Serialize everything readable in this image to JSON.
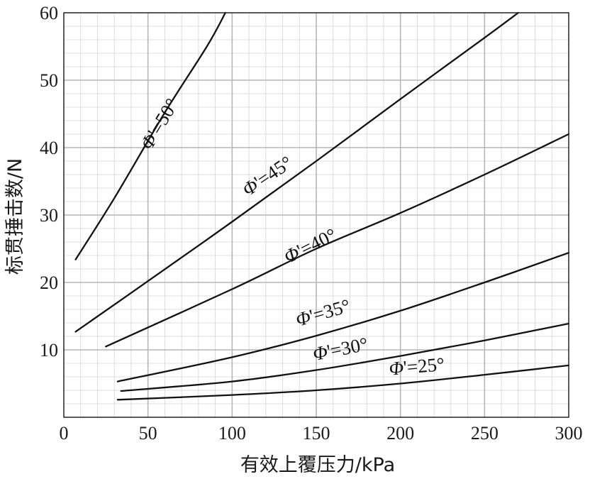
{
  "chart_data": {
    "type": "line",
    "title": "",
    "xlabel": "有效上覆压力/kPa",
    "ylabel": "标贯捶击数/N",
    "xlim": [
      0,
      300
    ],
    "ylim": [
      0,
      60
    ],
    "x_ticks": [
      "0",
      "50",
      "100",
      "150",
      "200",
      "250",
      "300"
    ],
    "y_ticks": [
      "10",
      "20",
      "30",
      "40",
      "50",
      "60"
    ],
    "grid": true,
    "minor_grid": true,
    "series": [
      {
        "name": "Φ'=50°",
        "points": [
          [
            7,
            23.4
          ],
          [
            30,
            32.5
          ],
          [
            60,
            45.2
          ],
          [
            85,
            55.0
          ],
          [
            96,
            60.0
          ]
        ]
      },
      {
        "name": "Φ'=45°",
        "points": [
          [
            7,
            12.7
          ],
          [
            50,
            20.2
          ],
          [
            100,
            29.0
          ],
          [
            150,
            38.0
          ],
          [
            200,
            47.2
          ],
          [
            250,
            56.3
          ],
          [
            270,
            60.0
          ]
        ]
      },
      {
        "name": "Φ'=40°",
        "points": [
          [
            25,
            10.5
          ],
          [
            100,
            19.0
          ],
          [
            150,
            25.0
          ],
          [
            200,
            30.3
          ],
          [
            250,
            36.0
          ],
          [
            300,
            42.0
          ]
        ]
      },
      {
        "name": "Φ'=35°",
        "points": [
          [
            32,
            5.3
          ],
          [
            100,
            8.9
          ],
          [
            150,
            12.1
          ],
          [
            200,
            15.8
          ],
          [
            250,
            20.0
          ],
          [
            300,
            24.4
          ]
        ]
      },
      {
        "name": "Φ'=30°",
        "points": [
          [
            34,
            3.9
          ],
          [
            100,
            5.3
          ],
          [
            150,
            7.0
          ],
          [
            200,
            9.1
          ],
          [
            250,
            11.4
          ],
          [
            300,
            13.9
          ]
        ]
      },
      {
        "name": "Φ'=25°",
        "points": [
          [
            32,
            2.6
          ],
          [
            100,
            3.3
          ],
          [
            150,
            4.0
          ],
          [
            200,
            5.0
          ],
          [
            250,
            6.3
          ],
          [
            300,
            7.7
          ]
        ]
      }
    ],
    "labels": [
      {
        "series": 0,
        "phi": "Φ",
        "rest": "'=50°",
        "x": 60,
        "y": 43,
        "angle": -59
      },
      {
        "series": 1,
        "phi": "Φ",
        "rest": "'=45°",
        "x": 123,
        "y": 35,
        "angle": -34
      },
      {
        "series": 2,
        "phi": "Φ",
        "rest": "'=40°",
        "x": 148,
        "y": 24.6,
        "angle": -26
      },
      {
        "series": 3,
        "phi": "Φ",
        "rest": "'=35°",
        "x": 155,
        "y": 14.6,
        "angle": -16
      },
      {
        "series": 4,
        "phi": "Φ",
        "rest": "'=30°",
        "x": 165,
        "y": 9.2,
        "angle": -11
      },
      {
        "series": 5,
        "phi": "Φ",
        "rest": "'=25°",
        "x": 210,
        "y": 6.6,
        "angle": -5
      }
    ]
  }
}
